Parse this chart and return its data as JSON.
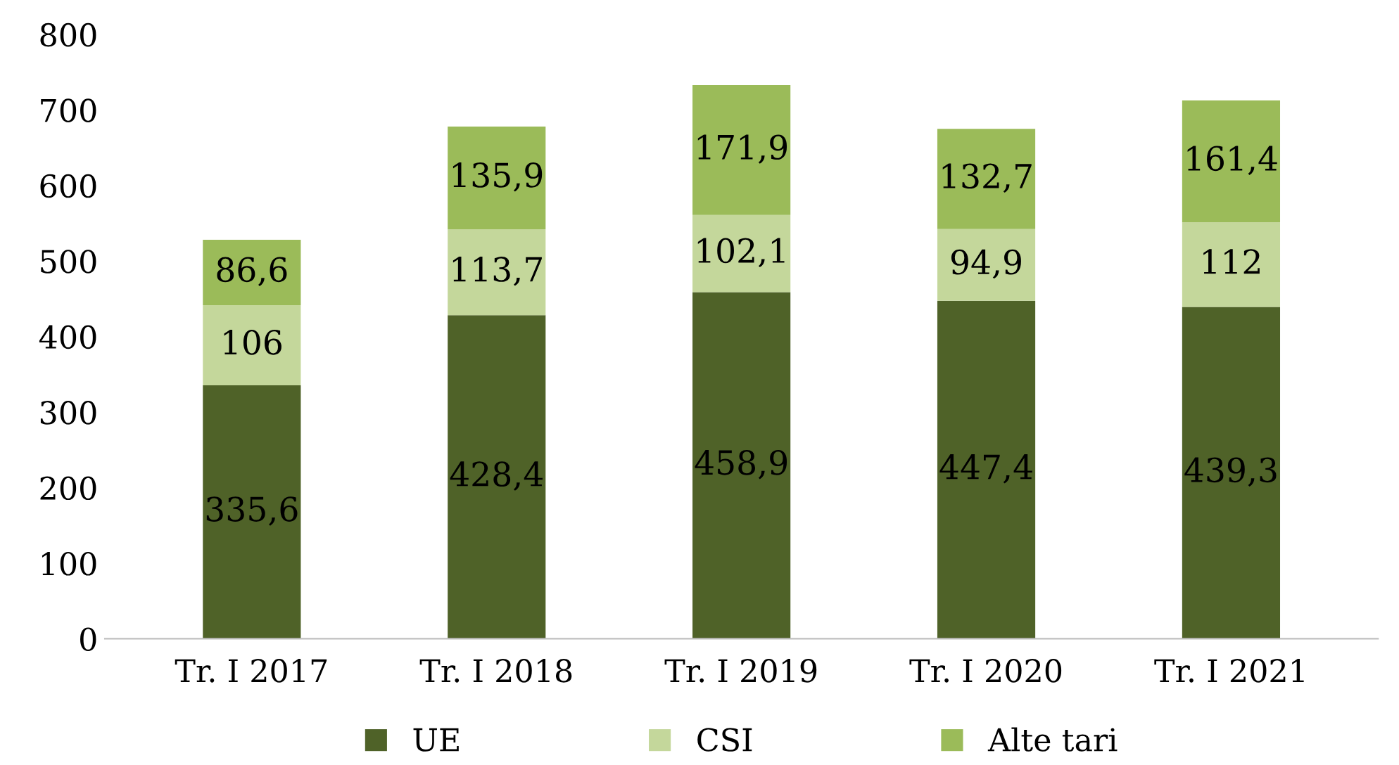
{
  "chart_data": {
    "type": "bar",
    "stacked": true,
    "categories": [
      "Tr. I 2017",
      "Tr. I 2018",
      "Tr. I 2019",
      "Tr. I 2020",
      "Tr. I 2021"
    ],
    "series": [
      {
        "name": "UE",
        "color": "#4f6228",
        "values": [
          335.6,
          428.4,
          458.9,
          447.4,
          439.3
        ],
        "value_labels": [
          "335,6",
          "428,4",
          "458,9",
          "447,4",
          "439,3"
        ]
      },
      {
        "name": "CSI",
        "color": "#c4d79b",
        "values": [
          106,
          113.7,
          102.1,
          94.9,
          112
        ],
        "value_labels": [
          "106",
          "113,7",
          "102,1",
          "94,9",
          "112"
        ]
      },
      {
        "name": "Alte tari",
        "color": "#9bbb59",
        "values": [
          86.6,
          135.9,
          171.9,
          132.7,
          161.4
        ],
        "value_labels": [
          "86,6",
          "135,9",
          "171,9",
          "132,7",
          "161,4"
        ]
      }
    ],
    "ylim": [
      0,
      800
    ],
    "yticks": [
      0,
      100,
      200,
      300,
      400,
      500,
      600,
      700,
      800
    ],
    "grid": false,
    "legend": "bottom"
  }
}
